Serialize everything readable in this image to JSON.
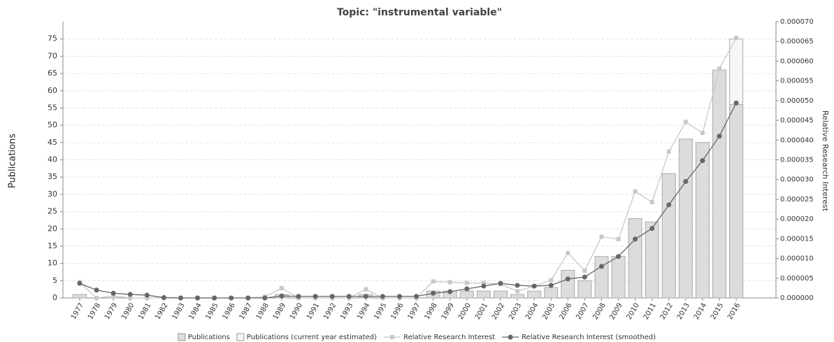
{
  "chart_data": {
    "type": "bar",
    "title": "Topic: \"instrumental variable\"",
    "ylabel": "Publications",
    "y2label": "Relative Research Interest",
    "categories": [
      "1977",
      "1978",
      "1979",
      "1980",
      "1981",
      "1982",
      "1983",
      "1984",
      "1985",
      "1986",
      "1987",
      "1988",
      "1989",
      "1990",
      "1991",
      "1992",
      "1993",
      "1994",
      "1995",
      "1996",
      "1997",
      "1998",
      "1999",
      "2000",
      "2001",
      "2002",
      "2003",
      "2004",
      "2005",
      "2006",
      "2007",
      "2008",
      "2009",
      "2010",
      "2011",
      "2012",
      "2013",
      "2014",
      "2015",
      "2016"
    ],
    "series": [
      {
        "name": "Publications (current year estimated)",
        "type": "bar",
        "color": "#f6f6f6",
        "values": [
          null,
          null,
          null,
          null,
          null,
          null,
          null,
          null,
          null,
          null,
          null,
          null,
          null,
          null,
          null,
          null,
          null,
          null,
          null,
          null,
          null,
          null,
          null,
          null,
          null,
          null,
          null,
          null,
          null,
          null,
          null,
          null,
          null,
          null,
          null,
          null,
          null,
          null,
          null,
          75
        ]
      },
      {
        "name": "Publications",
        "type": "bar",
        "color": "#dcdcdc",
        "values": [
          1,
          0,
          0,
          0,
          0,
          0,
          0,
          0,
          0,
          0,
          0,
          0,
          1,
          0,
          0,
          0,
          0,
          1,
          0,
          0,
          0,
          2,
          2,
          2,
          2,
          2,
          1,
          2,
          3,
          8,
          5,
          12,
          12,
          23,
          22,
          36,
          46,
          45,
          66,
          56
        ]
      },
      {
        "name": "Relative Research Interest",
        "type": "line",
        "axis": "y2",
        "marker": "square",
        "color": "#c8c8c8",
        "values": [
          4e-06,
          0,
          5e-07,
          0,
          0,
          0,
          0,
          0,
          0,
          0,
          0,
          3e-07,
          2.5e-06,
          0,
          0,
          0,
          0,
          2.2e-06,
          0,
          0,
          0,
          4.2e-06,
          4e-06,
          3.8e-06,
          3.8e-06,
          3.5e-06,
          1.7e-06,
          3e-06,
          4.5e-06,
          1.14e-05,
          6.9e-06,
          1.55e-05,
          1.49e-05,
          2.7e-05,
          2.43e-05,
          3.71e-05,
          4.46e-05,
          4.18e-05,
          5.81e-05,
          6.59e-05
        ]
      },
      {
        "name": "Relative Research Interest (smoothed)",
        "type": "line",
        "axis": "y2",
        "marker": "circle",
        "color": "#666666",
        "values": [
          3.7e-06,
          2e-06,
          1.2e-06,
          9e-07,
          7e-07,
          1e-07,
          0,
          0,
          0,
          0,
          0,
          0,
          5e-07,
          4e-07,
          4e-07,
          4e-07,
          4e-07,
          4e-07,
          4e-07,
          4e-07,
          4e-07,
          1.2e-06,
          1.6e-06,
          2.3e-06,
          3e-06,
          3.7e-06,
          3.2e-06,
          3e-06,
          3.2e-06,
          4.8e-06,
          5.3e-06,
          8e-06,
          1.05e-05,
          1.49e-05,
          1.76e-05,
          2.36e-05,
          2.95e-05,
          3.48e-05,
          4.1e-05,
          4.94e-05
        ]
      }
    ],
    "ylim": [
      0,
      80
    ],
    "yticks": [
      0,
      5,
      10,
      15,
      20,
      25,
      30,
      35,
      40,
      45,
      50,
      55,
      60,
      65,
      70,
      75
    ],
    "y2lim": [
      0,
      7e-05
    ],
    "y2ticks": [
      {
        "value": 0,
        "label": "0.000000"
      },
      {
        "value": 5e-06,
        "label": "0.000005"
      },
      {
        "value": 1e-05,
        "label": "0.000010"
      },
      {
        "value": 1.5e-05,
        "label": "0.000015"
      },
      {
        "value": 2e-05,
        "label": "0.000020"
      },
      {
        "value": 2.5e-05,
        "label": "0.000025"
      },
      {
        "value": 3e-05,
        "label": "0.000030"
      },
      {
        "value": 3.5e-05,
        "label": "0.000035"
      },
      {
        "value": 4e-05,
        "label": "0.000040"
      },
      {
        "value": 4.5e-05,
        "label": "0.000045"
      },
      {
        "value": 5e-05,
        "label": "0.000050"
      },
      {
        "value": 5.5e-05,
        "label": "0.000055"
      },
      {
        "value": 6e-05,
        "label": "0.000060"
      },
      {
        "value": 6.5e-05,
        "label": "0.000065"
      },
      {
        "value": 7e-05,
        "label": "0.000070"
      }
    ],
    "grid": true,
    "legend": "bottom"
  }
}
